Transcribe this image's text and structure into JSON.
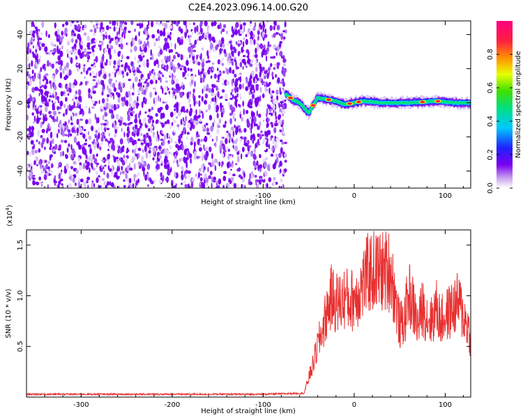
{
  "title": "C2E4.2023.096.14.00.G20",
  "chart_data": [
    {
      "type": "heatmap",
      "xlabel": "Height of straight line (km)",
      "ylabel": "Frequency (Hz)",
      "xlim": [
        -360,
        128
      ],
      "ylim": [
        -50,
        48
      ],
      "xticks": [
        -300,
        -200,
        -100,
        0,
        100
      ],
      "yticks": [
        -40,
        -20,
        0,
        20,
        40
      ],
      "noise_region_x": [
        -360,
        -75
      ],
      "signal_ridge": {
        "x": [
          -75,
          -68,
          -60,
          -50,
          -40,
          -30,
          -20,
          -10,
          0,
          10,
          30,
          60,
          90,
          110,
          128
        ],
        "freq": [
          5,
          2,
          0,
          -6,
          3,
          2,
          1,
          -1,
          0,
          1,
          0,
          0,
          1,
          0,
          0
        ],
        "peaks_x": [
          -70,
          -45,
          -28,
          -5,
          5,
          75,
          92
        ]
      },
      "colorbar": {
        "label": "Normalized spectral amplitude",
        "ticks": [
          0.0,
          0.2,
          0.4,
          0.6,
          0.8
        ],
        "range": [
          0,
          1
        ],
        "colors": [
          "#ffffff",
          "#c9a3f0",
          "#7a00f0",
          "#2020ff",
          "#00c8ff",
          "#00e080",
          "#40e000",
          "#e8ff00",
          "#ff9000",
          "#ff2040",
          "#ff0080"
        ]
      }
    },
    {
      "type": "line",
      "xlabel": "Height of straight line (km)",
      "ylabel": "SNR (10 * v/v)",
      "exponent": "(x10",
      "exponent_power": "4",
      "exponent_close": ")",
      "xlim": [
        -360,
        128
      ],
      "ylim": [
        0,
        1.65
      ],
      "xticks": [
        -300,
        -200,
        -100,
        0,
        100
      ],
      "yticks": [
        0.5,
        1.0,
        1.5
      ],
      "ytick_labels": [
        "0.5",
        "1.0",
        "1.5"
      ],
      "color": "#e83030",
      "series": [
        {
          "x": [
            -360,
            -100,
            -55,
            -50,
            -45,
            -40,
            -35,
            -30,
            -25,
            -20,
            -15,
            -10,
            -5,
            0,
            5,
            10,
            15,
            20,
            25,
            30,
            35,
            40,
            45,
            50,
            55,
            60,
            65,
            70,
            75,
            80,
            85,
            90,
            95,
            100,
            105,
            110,
            115,
            120,
            125,
            128
          ],
          "values": [
            0.03,
            0.03,
            0.04,
            0.2,
            0.35,
            0.55,
            0.7,
            0.9,
            1.05,
            1.0,
            1.0,
            1.05,
            1.0,
            1.05,
            1.1,
            1.2,
            1.3,
            1.32,
            1.33,
            1.32,
            1.33,
            1.34,
            1.05,
            0.75,
            0.8,
            1.1,
            0.95,
            0.75,
            0.95,
            0.85,
            0.8,
            0.95,
            0.8,
            0.85,
            0.9,
            0.95,
            1.0,
            0.85,
            0.75,
            0.6
          ]
        }
      ]
    }
  ]
}
